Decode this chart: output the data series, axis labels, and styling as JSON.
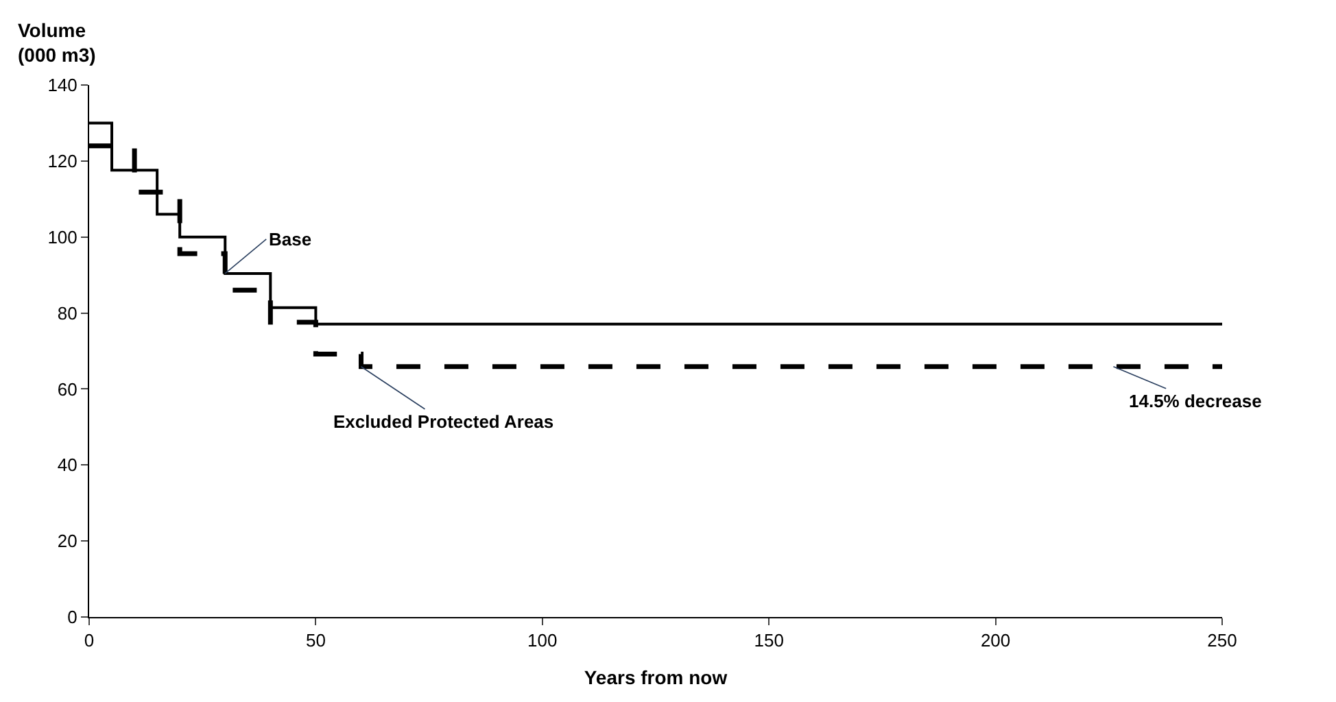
{
  "chart_data": {
    "type": "step",
    "xlabel": "Years from now",
    "ylabel": "Volume\n(000 m3)",
    "xlim": [
      0,
      250
    ],
    "xticks": [
      0,
      50,
      100,
      150,
      200,
      250
    ],
    "ylim": [
      0,
      140
    ],
    "yticks": [
      0,
      20,
      40,
      60,
      80,
      100,
      120,
      140
    ],
    "legend": false,
    "marker": "none",
    "series": [
      {
        "name": "Base",
        "color": "#000000",
        "line_style": "solid",
        "x": [
          0,
          5,
          15,
          20,
          30,
          40,
          50,
          250
        ],
        "values": [
          130,
          117.6,
          106,
          100,
          90.4,
          81.4,
          77.1,
          77.1
        ]
      },
      {
        "name": "Excluded Protected Areas",
        "color": "#000000",
        "line_style": "dashed",
        "x": [
          0,
          10,
          20,
          30,
          40,
          50,
          60,
          250
        ],
        "values": [
          124,
          111.8,
          95.6,
          86,
          77.6,
          69.2,
          65.9,
          65.9
        ]
      }
    ],
    "annotations": [
      {
        "text": "14.5% decrease",
        "x": 226,
        "y": 65.9
      }
    ]
  }
}
